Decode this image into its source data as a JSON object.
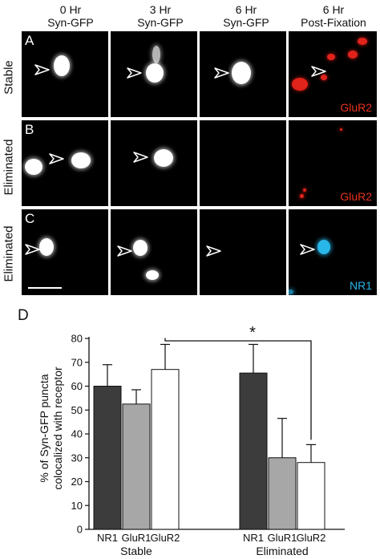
{
  "column_headers": [
    {
      "line1": "0 Hr",
      "line2": "Syn-GFP"
    },
    {
      "line1": "3 Hr",
      "line2": "Syn-GFP"
    },
    {
      "line1": "6 Hr",
      "line2": "Syn-GFP"
    },
    {
      "line1": "6 Hr",
      "line2": "Post-Fixation"
    }
  ],
  "rows": [
    {
      "letter": "A",
      "label": "Stable",
      "marker": "GluR2",
      "marker_color": "#e8321e"
    },
    {
      "letter": "B",
      "label": "Eliminated",
      "marker": "GluR2",
      "marker_color": "#e8321e"
    },
    {
      "letter": "C",
      "label": "Eliminated",
      "marker": "NR1",
      "marker_color": "#29b6e8"
    }
  ],
  "chart_letter": "D",
  "chart_data": {
    "type": "bar",
    "ylabel_line1": "% of Syn-GFP puncta",
    "ylabel_line2": "colocalized with receptor",
    "ylim": [
      0,
      80
    ],
    "yticks": [
      0,
      10,
      20,
      30,
      40,
      50,
      60,
      70,
      80
    ],
    "groups": [
      {
        "name": "Stable",
        "categories": [
          "NR1",
          "GluR1",
          "GluR2"
        ],
        "values": [
          60,
          52.5,
          67
        ],
        "errors": [
          9,
          6,
          10.5
        ]
      },
      {
        "name": "Eliminated",
        "categories": [
          "NR1",
          "GluR1",
          "GluR2"
        ],
        "values": [
          65.5,
          30,
          28
        ],
        "errors": [
          12,
          16.5,
          7.5
        ]
      }
    ],
    "bar_colors": [
      "#3c3c3c",
      "#a7a7a7",
      "#ffffff"
    ],
    "significance": {
      "from": "Stable GluR2",
      "to": "Eliminated GluR2",
      "label": "*"
    }
  }
}
